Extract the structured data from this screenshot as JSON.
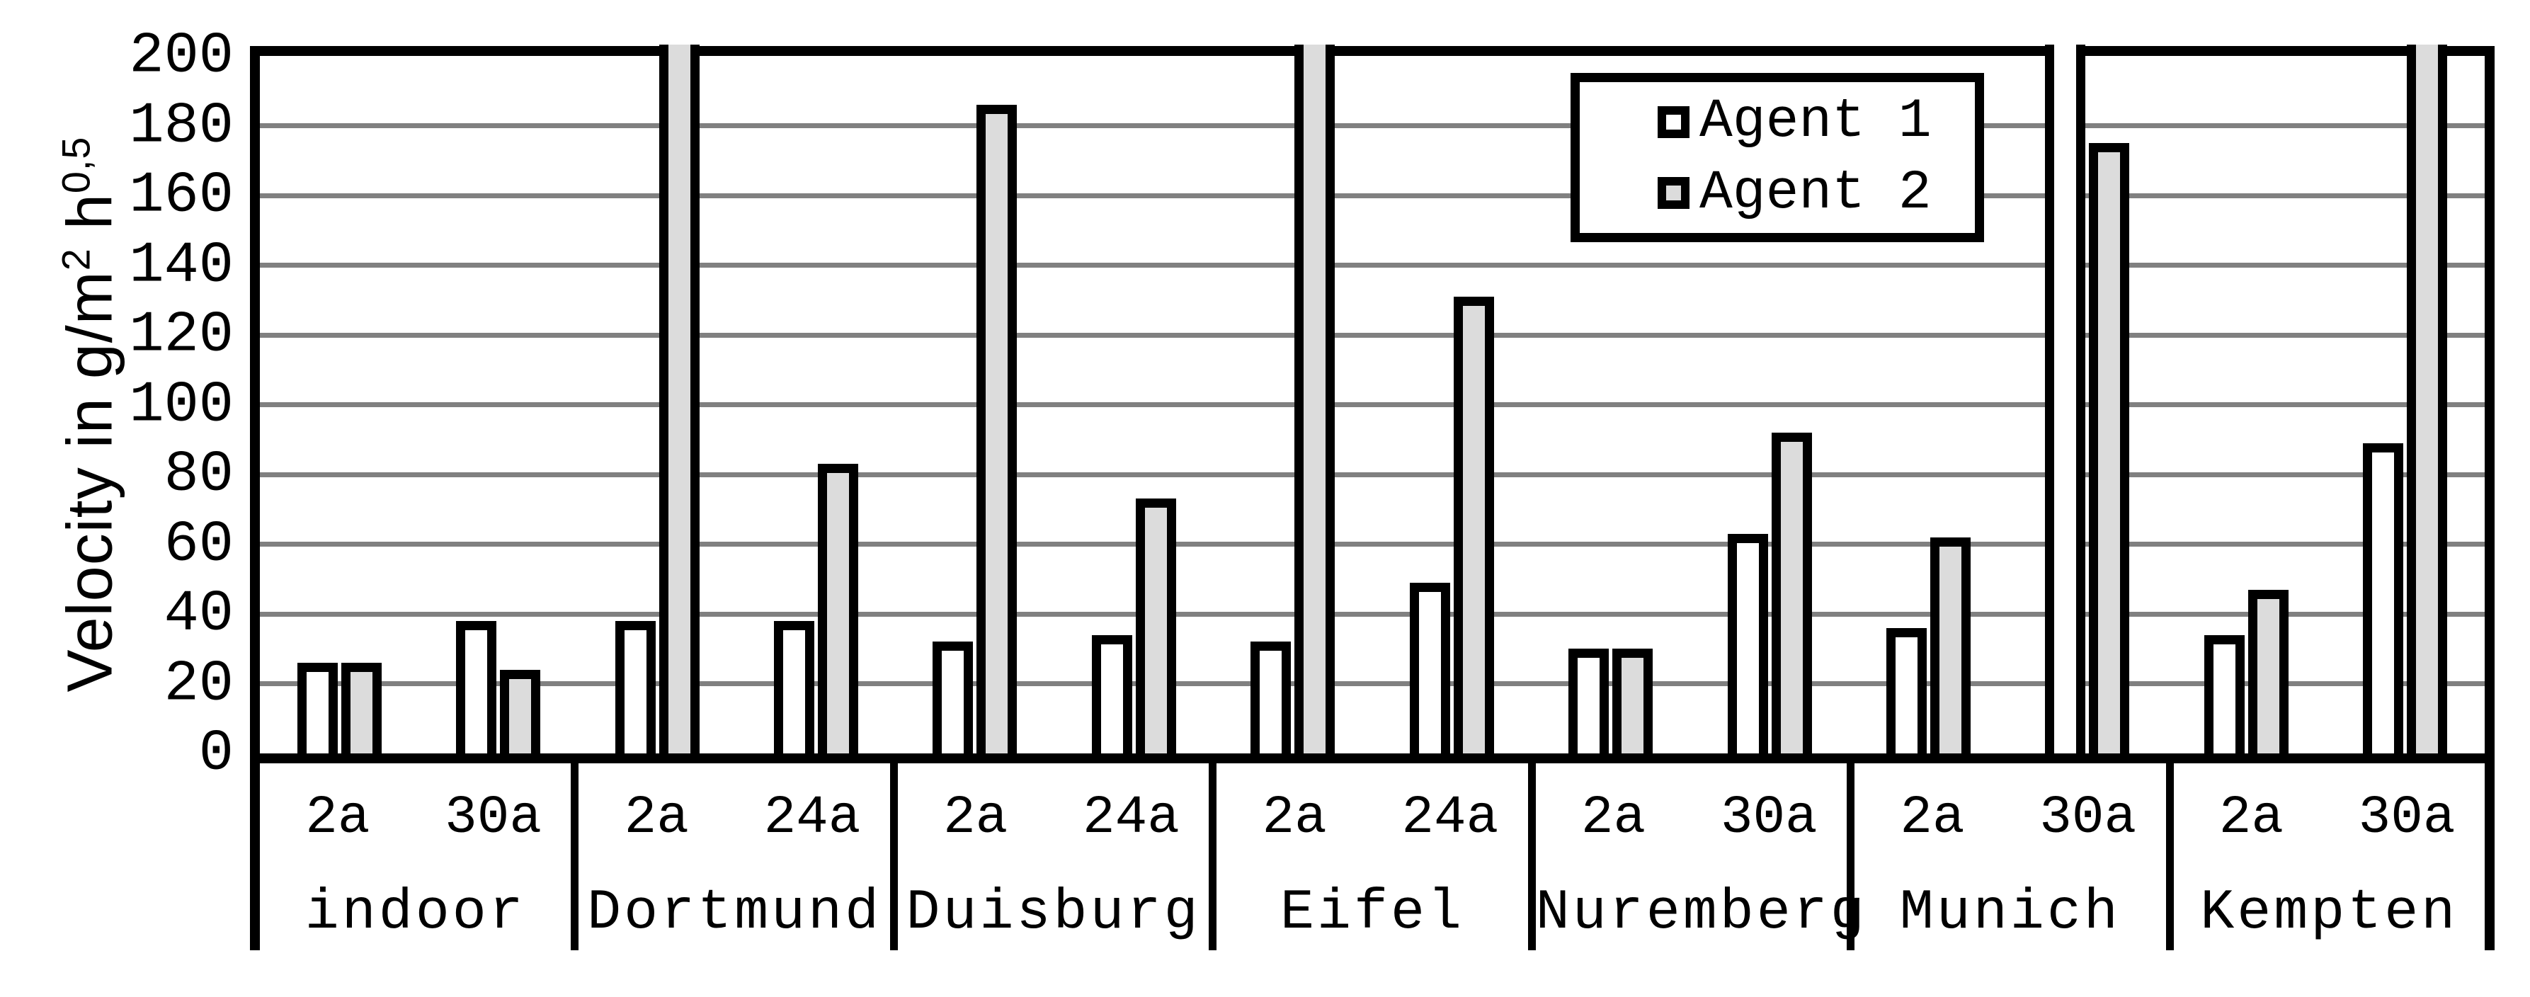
{
  "chart_data": {
    "type": "bar",
    "title": "",
    "ylabel": "Velocity in g/m² h^0,5",
    "ylabel_parts": {
      "base": "Velocity in g/m",
      "sup1": "2",
      "mid": " h",
      "sup2": "0,5"
    },
    "y_axis": {
      "min": 0,
      "max": 200,
      "tick_step": 20
    },
    "grid": true,
    "legend_position": "top-right",
    "legend": [
      {
        "label": "Agent 1",
        "fill": "#ffffff"
      },
      {
        "label": "Agent 2",
        "fill": "#dcdcdc"
      }
    ],
    "groups": [
      {
        "label": "indoor",
        "pairs": [
          {
            "label": "2a",
            "agent1": 26,
            "agent2": 26
          },
          {
            "label": "30a",
            "agent1": 38,
            "agent2": 24
          }
        ]
      },
      {
        "label": "Dortmund",
        "pairs": [
          {
            "label": "2a",
            "agent1": 38,
            "agent2": ">200"
          },
          {
            "label": "24a",
            "agent1": 38,
            "agent2": 83
          }
        ]
      },
      {
        "label": "Duisburg",
        "pairs": [
          {
            "label": "2a",
            "agent1": 32,
            "agent2": 186
          },
          {
            "label": "24a",
            "agent1": 34,
            "agent2": 73
          }
        ]
      },
      {
        "label": "Eifel",
        "pairs": [
          {
            "label": "2a",
            "agent1": 32,
            "agent2": ">200"
          },
          {
            "label": "24a",
            "agent1": 49,
            "agent2": 131
          }
        ]
      },
      {
        "label": "Nuremberg",
        "pairs": [
          {
            "label": "2a",
            "agent1": 30,
            "agent2": 30
          },
          {
            "label": "30a",
            "agent1": 63,
            "agent2": 92
          }
        ]
      },
      {
        "label": "Munich",
        "pairs": [
          {
            "label": "2a",
            "agent1": 36,
            "agent2": 62
          },
          {
            "label": "30a",
            "agent1": ">200",
            "agent2": 175
          }
        ]
      },
      {
        "label": "Kempten",
        "pairs": [
          {
            "label": "2a",
            "agent1": 34,
            "agent2": 47
          },
          {
            "label": "30a",
            "agent1": 89,
            "agent2": ">200"
          }
        ]
      }
    ]
  },
  "colors": {
    "bar_agent1_fill": "#ffffff",
    "bar_agent2_fill": "#dcdcdc",
    "bar_border": "#000000",
    "gridline": "#808080",
    "frame": "#000000",
    "background": "#ffffff",
    "text": "#000000"
  }
}
